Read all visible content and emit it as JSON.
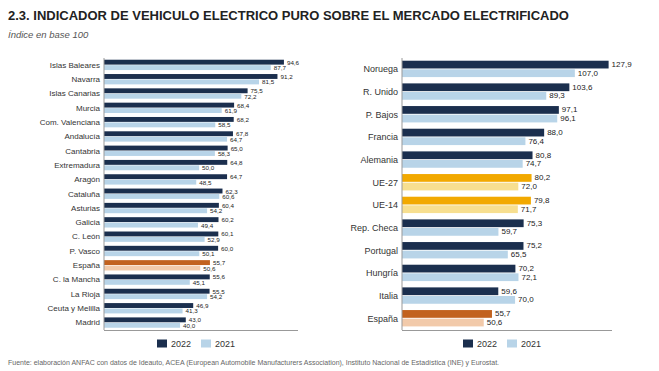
{
  "chart_data": [
    {
      "type": "bar",
      "orientation": "horizontal",
      "title": "2.3. INDICADOR DE VEHICULO ELECTRICO PURO SOBRE EL MERCADO ELECTRIFICADO",
      "subtitle": "Índice en base 100",
      "footnote": "Fuente: elaboración ANFAC con datos de Ideauto, ACEA (European Automobile Manufacturers Association), Instituto Nacional de Estadística (INE) y Eurostat.",
      "categories": [
        "Islas Baleares",
        "Navarra",
        "Islas Canarias",
        "Murcia",
        "Com. Valenciana",
        "Andalucía",
        "Cantabria",
        "Extremadura",
        "Aragón",
        "Cataluña",
        "Asturias",
        "Galicia",
        "C. León",
        "P. Vasco",
        "España",
        "C. la Mancha",
        "La Rioja",
        "Ceuta y Melilla",
        "Madrid"
      ],
      "series": [
        {
          "name": "2022",
          "color": "#1b2f4e",
          "colors": [
            "#1b2f4e",
            "#1b2f4e",
            "#1b2f4e",
            "#1b2f4e",
            "#1b2f4e",
            "#1b2f4e",
            "#1b2f4e",
            "#1b2f4e",
            "#1b2f4e",
            "#1b2f4e",
            "#1b2f4e",
            "#1b2f4e",
            "#1b2f4e",
            "#1b2f4e",
            "#c2621f",
            "#1b2f4e",
            "#1b2f4e",
            "#1b2f4e",
            "#1b2f4e"
          ],
          "values": [
            94.6,
            91.2,
            75.5,
            68.4,
            68.2,
            67.8,
            65.0,
            64.8,
            64.7,
            62.3,
            60.4,
            60.2,
            60.1,
            60.0,
            55.7,
            55.6,
            55.5,
            46.9,
            43.0
          ],
          "value_labels": [
            "94,6",
            "91,2",
            "75,5",
            "68,4",
            "68,2",
            "67,8",
            "65,0",
            "64,8",
            "64,7",
            "62,3",
            "60,4",
            "60,2",
            "60,1",
            "60,0",
            "55,7",
            "55,6",
            "55,5",
            "46,9",
            "43,0"
          ]
        },
        {
          "name": "2021",
          "color": "#b8d4e8",
          "colors": [
            "#b8d4e8",
            "#b8d4e8",
            "#b8d4e8",
            "#b8d4e8",
            "#b8d4e8",
            "#b8d4e8",
            "#b8d4e8",
            "#b8d4e8",
            "#b8d4e8",
            "#b8d4e8",
            "#b8d4e8",
            "#b8d4e8",
            "#b8d4e8",
            "#b8d4e8",
            "#f2caaa",
            "#b8d4e8",
            "#b8d4e8",
            "#b8d4e8",
            "#b8d4e8"
          ],
          "values": [
            87.7,
            81.5,
            72.2,
            61.9,
            58.5,
            64.7,
            58.3,
            50.0,
            48.5,
            60.6,
            54.2,
            49.4,
            52.9,
            50.1,
            50.6,
            45.1,
            54.2,
            41.3,
            40.0
          ],
          "value_labels": [
            "87,7",
            "81,5",
            "72,2",
            "61,9",
            "58,5",
            "64,7",
            "58,3",
            "50,0",
            "48,5",
            "60,6",
            "54,2",
            "49,4",
            "52,9",
            "50,1",
            "50,6",
            "45,1",
            "54,2",
            "41,3",
            "40,0"
          ]
        }
      ],
      "xlim": [
        0,
        102
      ],
      "tick_labels": "y",
      "grid": false,
      "legend": "bottom",
      "data_labels": true
    },
    {
      "type": "bar",
      "orientation": "horizontal",
      "categories": [
        "Noruega",
        "R. Unido",
        "P. Bajos",
        "Francia",
        "Alemania",
        "UE-27",
        "UE-14",
        "Rep. Checa",
        "Portugal",
        "Hungría",
        "Italia",
        "España"
      ],
      "series": [
        {
          "name": "2022",
          "color": "#1b2f4e",
          "colors": [
            "#1b2f4e",
            "#1b2f4e",
            "#1b2f4e",
            "#1b2f4e",
            "#1b2f4e",
            "#f2a900",
            "#f2a900",
            "#1b2f4e",
            "#1b2f4e",
            "#1b2f4e",
            "#1b2f4e",
            "#c2621f"
          ],
          "values": [
            127.9,
            103.6,
            97.1,
            88.0,
            80.8,
            80.2,
            79.8,
            75.3,
            75.2,
            70.2,
            59.6,
            55.7
          ],
          "value_labels": [
            "127,9",
            "103,6",
            "97,1",
            "88,0",
            "80,8",
            "80,2",
            "79,8",
            "75,3",
            "75,2",
            "70,2",
            "59,6",
            "55,7"
          ]
        },
        {
          "name": "2021",
          "color": "#b8d4e8",
          "colors": [
            "#b8d4e8",
            "#b8d4e8",
            "#b8d4e8",
            "#b8d4e8",
            "#b8d4e8",
            "#f7df90",
            "#f7df90",
            "#b8d4e8",
            "#b8d4e8",
            "#b8d4e8",
            "#b8d4e8",
            "#f2caaa"
          ],
          "values": [
            107.0,
            89.3,
            96.1,
            76.4,
            74.7,
            72.0,
            71.7,
            59.7,
            65.5,
            72.1,
            70.0,
            50.6
          ],
          "value_labels": [
            "107,0",
            "89,3",
            "96,1",
            "76,4",
            "74,7",
            "72,0",
            "71,7",
            "59,7",
            "65,5",
            "72,1",
            "70,0",
            "50,6"
          ]
        }
      ],
      "xlim": [
        0,
        130
      ],
      "tick_labels": "y",
      "grid": false,
      "legend": "bottom",
      "data_labels": true
    }
  ]
}
